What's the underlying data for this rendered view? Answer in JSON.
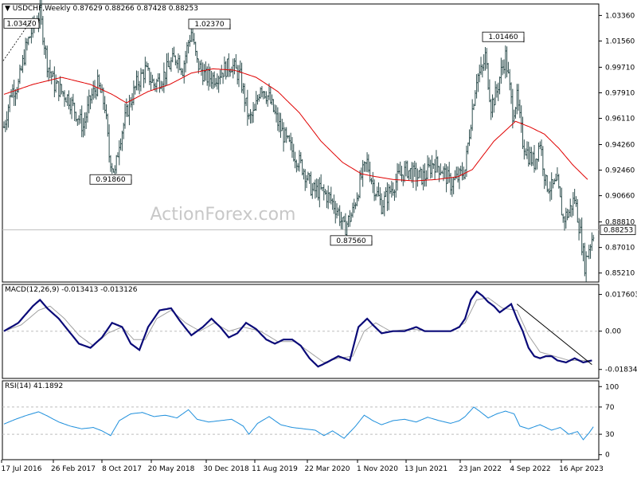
{
  "header": {
    "symbol": "USDCHF,Weekly",
    "ohlc": "0.87629 0.88266 0.87428 0.88253"
  },
  "watermark": "ActionForex.com",
  "colors": {
    "bars": "#2f4f4f",
    "ma": "#e00000",
    "macd": "#0a0a78",
    "signal": "#a0a0a0",
    "rsi": "#1e8fdc",
    "trend": "#000000",
    "grid_level": "#bdbdbd"
  },
  "chart_data": [
    {
      "type": "line",
      "title": "USDCHF,Weekly",
      "description": "Weekly price bars with moving average",
      "x_ticks": [
        "17 Jul 2016",
        "26 Feb 2017",
        "8 Oct 2017",
        "20 May 2018",
        "30 Dec 2018",
        "11 Aug 2019",
        "22 Mar 2020",
        "1 Nov 2020",
        "13 Jun 2021",
        "23 Jan 2022",
        "4 Sep 2022",
        "16 Apr 2023"
      ],
      "y_ticks": [
        1.0336,
        1.0156,
        0.9971,
        0.9791,
        0.9611,
        0.9426,
        0.9246,
        0.9066,
        0.8881,
        0.8701,
        0.8521
      ],
      "ylim": [
        0.848,
        1.04
      ],
      "price_path": [
        [
          0,
          0.955
        ],
        [
          5,
          0.98
        ],
        [
          10,
          0.985
        ],
        [
          15,
          1.01
        ],
        [
          20,
          1.025
        ],
        [
          25,
          1.035
        ],
        [
          30,
          1.0
        ],
        [
          35,
          0.985
        ],
        [
          40,
          0.98
        ],
        [
          45,
          0.975
        ],
        [
          50,
          0.965
        ],
        [
          55,
          0.955
        ],
        [
          60,
          0.975
        ],
        [
          65,
          0.985
        ],
        [
          70,
          0.97
        ],
        [
          73,
          0.935
        ],
        [
          77,
          0.922
        ],
        [
          80,
          0.945
        ],
        [
          86,
          0.968
        ],
        [
          92,
          0.985
        ],
        [
          98,
          0.995
        ],
        [
          104,
          0.985
        ],
        [
          110,
          0.99
        ],
        [
          116,
          1.0
        ],
        [
          120,
          1.005
        ],
        [
          124,
          0.996
        ],
        [
          128,
          1.015
        ],
        [
          130,
          1.022
        ],
        [
          134,
          1.0
        ],
        [
          140,
          0.99
        ],
        [
          146,
          0.99
        ],
        [
          152,
          0.995
        ],
        [
          158,
          0.999
        ],
        [
          164,
          0.99
        ],
        [
          170,
          0.96
        ],
        [
          174,
          0.965
        ],
        [
          178,
          0.985
        ],
        [
          184,
          0.975
        ],
        [
          190,
          0.958
        ],
        [
          196,
          0.945
        ],
        [
          202,
          0.935
        ],
        [
          208,
          0.925
        ],
        [
          214,
          0.91
        ],
        [
          220,
          0.91
        ],
        [
          226,
          0.905
        ],
        [
          232,
          0.895
        ],
        [
          236,
          0.883
        ],
        [
          242,
          0.895
        ],
        [
          248,
          0.92
        ],
        [
          252,
          0.93
        ],
        [
          256,
          0.915
        ],
        [
          262,
          0.9
        ],
        [
          268,
          0.91
        ],
        [
          274,
          0.92
        ],
        [
          280,
          0.925
        ],
        [
          286,
          0.92
        ],
        [
          292,
          0.92
        ],
        [
          298,
          0.93
        ],
        [
          304,
          0.925
        ],
        [
          310,
          0.915
        ],
        [
          316,
          0.92
        ],
        [
          320,
          0.925
        ],
        [
          324,
          0.96
        ],
        [
          328,
          0.99
        ],
        [
          332,
          0.995
        ],
        [
          334,
          1.005
        ],
        [
          338,
          0.97
        ],
        [
          342,
          0.98
        ],
        [
          344,
          0.99
        ],
        [
          348,
          1.005
        ],
        [
          350,
          0.99
        ],
        [
          353,
          0.965
        ],
        [
          356,
          0.975
        ],
        [
          360,
          0.945
        ],
        [
          364,
          0.935
        ],
        [
          368,
          0.93
        ],
        [
          372,
          0.945
        ],
        [
          376,
          0.915
        ],
        [
          380,
          0.912
        ],
        [
          384,
          0.915
        ],
        [
          388,
          0.89
        ],
        [
          392,
          0.895
        ],
        [
          396,
          0.905
        ],
        [
          400,
          0.88
        ],
        [
          403,
          0.858
        ],
        [
          406,
          0.87
        ],
        [
          409,
          0.88
        ]
      ],
      "ma_path": [
        [
          0,
          0.978
        ],
        [
          20,
          0.985
        ],
        [
          40,
          0.99
        ],
        [
          60,
          0.985
        ],
        [
          75,
          0.978
        ],
        [
          85,
          0.972
        ],
        [
          100,
          0.98
        ],
        [
          115,
          0.985
        ],
        [
          130,
          0.993
        ],
        [
          145,
          0.996
        ],
        [
          160,
          0.995
        ],
        [
          175,
          0.99
        ],
        [
          190,
          0.98
        ],
        [
          205,
          0.965
        ],
        [
          220,
          0.945
        ],
        [
          235,
          0.93
        ],
        [
          248,
          0.922
        ],
        [
          258,
          0.92
        ],
        [
          270,
          0.918
        ],
        [
          285,
          0.917
        ],
        [
          300,
          0.918
        ],
        [
          315,
          0.92
        ],
        [
          325,
          0.925
        ],
        [
          340,
          0.945
        ],
        [
          355,
          0.959
        ],
        [
          365,
          0.955
        ],
        [
          375,
          0.95
        ],
        [
          385,
          0.94
        ],
        [
          395,
          0.928
        ],
        [
          405,
          0.918
        ]
      ],
      "annotations": [
        {
          "text": "1.03420",
          "value": 1.0342
        },
        {
          "text": "1.02370",
          "value": 1.0237
        },
        {
          "text": "0.91860",
          "value": 0.9186
        },
        {
          "text": "0.87560",
          "value": 0.8756
        },
        {
          "text": "1.01460",
          "value": 1.0146
        }
      ],
      "current_price": {
        "text": "0.88253",
        "value": 0.88253
      }
    },
    {
      "type": "line",
      "title": "MACD(12,26,9) -0.013413 -0.013126",
      "y_ticks": [
        "0.017603",
        "0.00",
        "-0.01834"
      ],
      "y_values": [
        0.017603,
        0.0,
        -0.01834
      ],
      "ylim": [
        -0.0215,
        0.0205
      ],
      "macd_path": [
        [
          0,
          0.0
        ],
        [
          10,
          0.004
        ],
        [
          20,
          0.012
        ],
        [
          25,
          0.015
        ],
        [
          30,
          0.011
        ],
        [
          38,
          0.006
        ],
        [
          45,
          0.0
        ],
        [
          52,
          -0.006
        ],
        [
          60,
          -0.008
        ],
        [
          68,
          -0.003
        ],
        [
          75,
          0.004
        ],
        [
          82,
          0.002
        ],
        [
          88,
          -0.006
        ],
        [
          94,
          -0.009
        ],
        [
          100,
          0.002
        ],
        [
          108,
          0.01
        ],
        [
          116,
          0.011
        ],
        [
          122,
          0.005
        ],
        [
          130,
          -0.002
        ],
        [
          138,
          0.002
        ],
        [
          144,
          0.006
        ],
        [
          150,
          0.002
        ],
        [
          156,
          -0.003
        ],
        [
          162,
          -0.001
        ],
        [
          168,
          0.004
        ],
        [
          175,
          0.001
        ],
        [
          182,
          -0.004
        ],
        [
          188,
          -0.006
        ],
        [
          194,
          -0.004
        ],
        [
          200,
          -0.004
        ],
        [
          206,
          -0.007
        ],
        [
          212,
          -0.013
        ],
        [
          218,
          -0.017
        ],
        [
          224,
          -0.015
        ],
        [
          232,
          -0.012
        ],
        [
          240,
          -0.014
        ],
        [
          246,
          0.002
        ],
        [
          252,
          0.006
        ],
        [
          256,
          0.003
        ],
        [
          262,
          -0.001
        ],
        [
          270,
          0.0
        ],
        [
          278,
          0.0
        ],
        [
          286,
          0.002
        ],
        [
          292,
          0.0
        ],
        [
          298,
          0.0
        ],
        [
          304,
          0.0
        ],
        [
          310,
          0.0
        ],
        [
          316,
          0.002
        ],
        [
          320,
          0.006
        ],
        [
          324,
          0.015
        ],
        [
          328,
          0.019
        ],
        [
          332,
          0.017
        ],
        [
          336,
          0.014
        ],
        [
          340,
          0.012
        ],
        [
          344,
          0.009
        ],
        [
          348,
          0.011
        ],
        [
          352,
          0.013
        ],
        [
          356,
          0.006
        ],
        [
          360,
          0.0
        ],
        [
          364,
          -0.008
        ],
        [
          368,
          -0.012
        ],
        [
          372,
          -0.013
        ],
        [
          376,
          -0.012
        ],
        [
          380,
          -0.012
        ],
        [
          384,
          -0.014
        ],
        [
          390,
          -0.015
        ],
        [
          396,
          -0.013
        ],
        [
          402,
          -0.015
        ],
        [
          408,
          -0.014
        ]
      ],
      "signal_path": [
        [
          0,
          0.0
        ],
        [
          12,
          0.003
        ],
        [
          24,
          0.01
        ],
        [
          32,
          0.012
        ],
        [
          42,
          0.006
        ],
        [
          52,
          -0.002
        ],
        [
          62,
          -0.007
        ],
        [
          72,
          -0.001
        ],
        [
          82,
          0.002
        ],
        [
          90,
          -0.004
        ],
        [
          98,
          -0.004
        ],
        [
          106,
          0.006
        ],
        [
          116,
          0.01
        ],
        [
          126,
          0.004
        ],
        [
          136,
          0.0
        ],
        [
          146,
          0.004
        ],
        [
          156,
          0.0
        ],
        [
          166,
          0.002
        ],
        [
          178,
          0.0
        ],
        [
          190,
          -0.005
        ],
        [
          202,
          -0.005
        ],
        [
          212,
          -0.01
        ],
        [
          222,
          -0.015
        ],
        [
          232,
          -0.013
        ],
        [
          242,
          -0.012
        ],
        [
          250,
          0.0
        ],
        [
          258,
          0.004
        ],
        [
          268,
          0.0
        ],
        [
          282,
          0.001
        ],
        [
          296,
          0.0
        ],
        [
          310,
          0.0
        ],
        [
          320,
          0.004
        ],
        [
          328,
          0.015
        ],
        [
          336,
          0.016
        ],
        [
          346,
          0.011
        ],
        [
          356,
          0.01
        ],
        [
          364,
          -0.002
        ],
        [
          372,
          -0.01
        ],
        [
          382,
          -0.012
        ],
        [
          392,
          -0.014
        ],
        [
          402,
          -0.014
        ],
        [
          408,
          -0.014
        ]
      ],
      "trendline": [
        [
          356,
          0.013
        ],
        [
          408,
          -0.016
        ]
      ]
    },
    {
      "type": "line",
      "title": "RSI(14) 41.1892",
      "y_ticks": [
        100,
        70,
        30,
        0
      ],
      "ylim": [
        -5,
        105
      ],
      "rsi_path": [
        [
          0,
          45
        ],
        [
          8,
          52
        ],
        [
          16,
          58
        ],
        [
          24,
          63
        ],
        [
          30,
          57
        ],
        [
          38,
          48
        ],
        [
          46,
          42
        ],
        [
          54,
          38
        ],
        [
          62,
          40
        ],
        [
          68,
          35
        ],
        [
          74,
          28
        ],
        [
          80,
          50
        ],
        [
          88,
          60
        ],
        [
          96,
          62
        ],
        [
          104,
          56
        ],
        [
          112,
          58
        ],
        [
          120,
          54
        ],
        [
          128,
          66
        ],
        [
          134,
          52
        ],
        [
          142,
          48
        ],
        [
          150,
          50
        ],
        [
          158,
          52
        ],
        [
          166,
          42
        ],
        [
          170,
          30
        ],
        [
          176,
          46
        ],
        [
          184,
          56
        ],
        [
          192,
          44
        ],
        [
          200,
          40
        ],
        [
          208,
          38
        ],
        [
          216,
          36
        ],
        [
          222,
          28
        ],
        [
          228,
          35
        ],
        [
          236,
          24
        ],
        [
          244,
          42
        ],
        [
          250,
          58
        ],
        [
          256,
          50
        ],
        [
          262,
          44
        ],
        [
          270,
          50
        ],
        [
          278,
          52
        ],
        [
          286,
          48
        ],
        [
          294,
          55
        ],
        [
          302,
          50
        ],
        [
          310,
          46
        ],
        [
          316,
          50
        ],
        [
          320,
          56
        ],
        [
          326,
          70
        ],
        [
          330,
          64
        ],
        [
          336,
          54
        ],
        [
          342,
          60
        ],
        [
          348,
          64
        ],
        [
          354,
          60
        ],
        [
          358,
          42
        ],
        [
          364,
          38
        ],
        [
          372,
          44
        ],
        [
          380,
          36
        ],
        [
          386,
          40
        ],
        [
          392,
          30
        ],
        [
          398,
          34
        ],
        [
          402,
          22
        ],
        [
          406,
          32
        ],
        [
          409,
          41
        ]
      ]
    }
  ]
}
